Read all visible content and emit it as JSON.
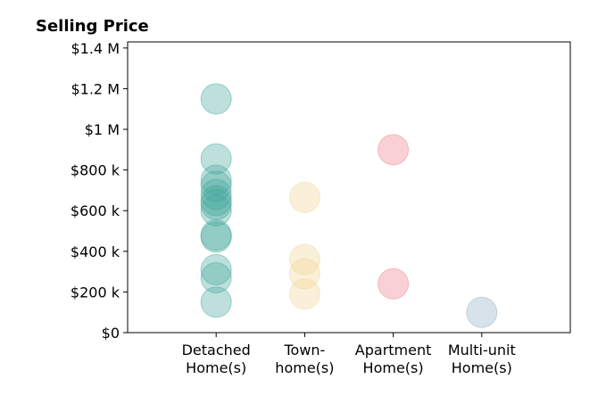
{
  "chart_data": {
    "type": "scatter",
    "title": "Selling Price",
    "xlabel": "",
    "ylabel": "",
    "categories": [
      [
        "Detached",
        "Home(s)"
      ],
      [
        "Town-",
        "home(s)"
      ],
      [
        "Apartment",
        "Home(s)"
      ],
      [
        "Multi-unit",
        "Home(s)"
      ]
    ],
    "yticks": [
      {
        "value": 0,
        "label": "$0"
      },
      {
        "value": 200000,
        "label": "$200 k"
      },
      {
        "value": 400000,
        "label": "$400 k"
      },
      {
        "value": 600000,
        "label": "$600 k"
      },
      {
        "value": 800000,
        "label": "$800 k"
      },
      {
        "value": 1000000,
        "label": "$1 M"
      },
      {
        "value": 1200000,
        "label": "$1.2 M"
      },
      {
        "value": 1400000,
        "label": "$1.4 M"
      }
    ],
    "ylim": [
      0,
      1430000
    ],
    "xlim": [
      -1,
      4
    ],
    "grid": false,
    "series": [
      {
        "color": "#41a69a",
        "x": 0,
        "values": [
          1150000,
          855000,
          750000,
          720000,
          680000,
          650000,
          630000,
          600000,
          480000,
          470000,
          310000,
          270000,
          150000
        ]
      },
      {
        "color": "#f0d592",
        "x": 1,
        "values": [
          665000,
          360000,
          290000,
          190000
        ]
      },
      {
        "color": "#ee7b88",
        "x": 2,
        "values": [
          900000,
          240000
        ]
      },
      {
        "color": "#8badc2",
        "x": 3,
        "values": [
          100000
        ]
      }
    ]
  }
}
